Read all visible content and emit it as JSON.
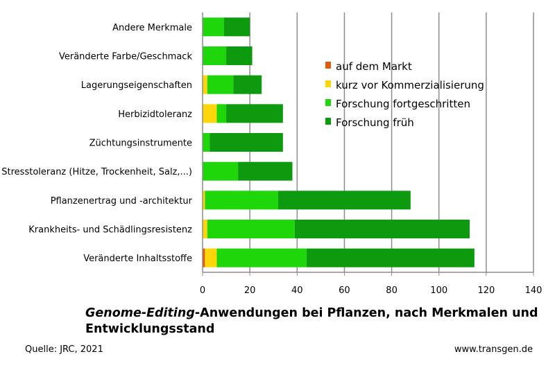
{
  "chart_data": {
    "type": "bar",
    "orientation": "horizontal",
    "stacked": true,
    "categories": [
      "Andere Merkmale",
      "Veränderte Farbe/Geschmack",
      "Lagerungseigenschaften",
      "Herbizidtoleranz",
      "Züchtungsinstrumente",
      "Stresstoleranz (Hitze, Trockenheit, Salz,...)",
      "Pflanzenertrag und -architektur",
      "Krankheits- und Schädlingsresistenz",
      "Veränderte Inhaltsstoffe"
    ],
    "series": [
      {
        "name": "auf dem Markt",
        "color": "#e25a0c",
        "values": [
          0,
          0,
          0,
          0,
          0,
          0,
          0,
          0,
          1
        ]
      },
      {
        "name": "kurz vor Kommerzialisierung",
        "color": "#ffd60a",
        "values": [
          0,
          0,
          2,
          6,
          0,
          0,
          1,
          2,
          5
        ]
      },
      {
        "name": "Forschung fortgeschritten",
        "color": "#1ed60a",
        "values": [
          9,
          10,
          11,
          4,
          3,
          15,
          31,
          37,
          38
        ]
      },
      {
        "name": "Forschung früh",
        "color": "#0e9a0e",
        "values": [
          11,
          11,
          12,
          24,
          31,
          23,
          56,
          74,
          71
        ]
      }
    ],
    "xlim": [
      0,
      140
    ],
    "xticks": [
      0,
      20,
      40,
      60,
      80,
      100,
      120,
      140
    ],
    "grid": "vertical",
    "legend_position": "top-right inside plot",
    "title_italic": "Genome-Editing",
    "title_rest": "-Anwendungen bei Pflanzen, nach Merkmalen und Entwicklungsstand"
  },
  "footer": {
    "source": "Quelle: JRC, 2021",
    "site": "www.transgen.de"
  }
}
